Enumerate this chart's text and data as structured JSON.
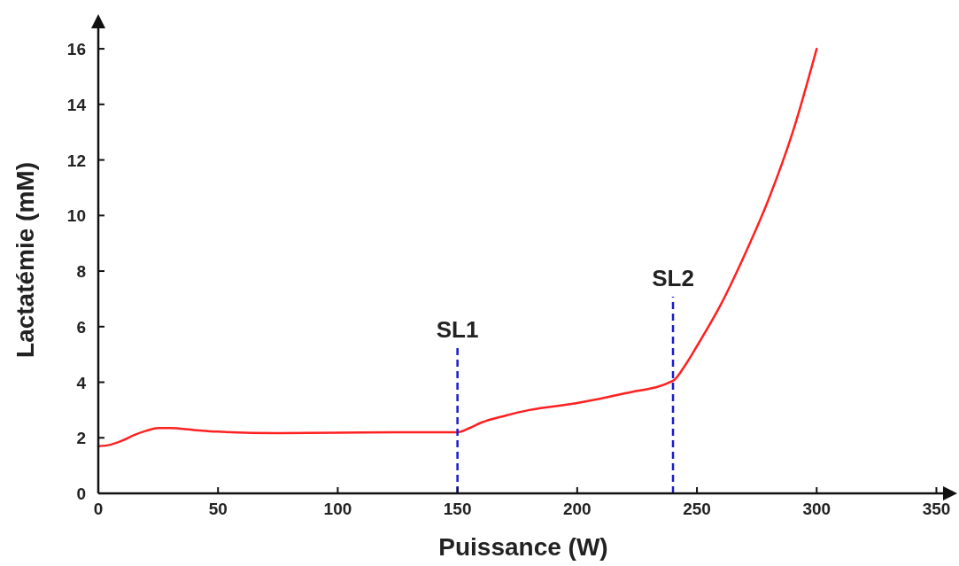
{
  "chart_data": {
    "type": "line",
    "xlabel": "Puissance (W)",
    "ylabel": "Lactatémie (mM)",
    "x": [
      0,
      5,
      10,
      15,
      20,
      25,
      30,
      40,
      50,
      75,
      100,
      125,
      150,
      155,
      160,
      170,
      180,
      200,
      220,
      240,
      245,
      250,
      260,
      270,
      280,
      290,
      300
    ],
    "series": [
      {
        "color": "#ff2020",
        "values": [
          1.7,
          1.75,
          1.9,
          2.1,
          2.25,
          2.35,
          2.35,
          2.28,
          2.22,
          2.17,
          2.18,
          2.2,
          2.2,
          2.35,
          2.55,
          2.8,
          3.0,
          3.25,
          3.6,
          4.05,
          4.6,
          5.3,
          6.8,
          8.6,
          10.6,
          13.0,
          16.0
        ]
      }
    ],
    "xlim": [
      0,
      355
    ],
    "xticks": [
      0,
      50,
      100,
      150,
      200,
      250,
      300,
      350
    ],
    "ylim": [
      0,
      16.8
    ],
    "yticks": [
      0,
      2,
      4,
      6,
      8,
      10,
      12,
      14,
      16
    ],
    "ref_lines": [
      {
        "axis": "x",
        "value": 150,
        "label": "SL1",
        "color": "#1a1ad0",
        "line_style": "dashed"
      },
      {
        "axis": "x",
        "value": 240,
        "label": "SL2",
        "color": "#1a1ad0",
        "line_style": "dashed"
      }
    ],
    "grid": false,
    "line_style": "solid"
  }
}
